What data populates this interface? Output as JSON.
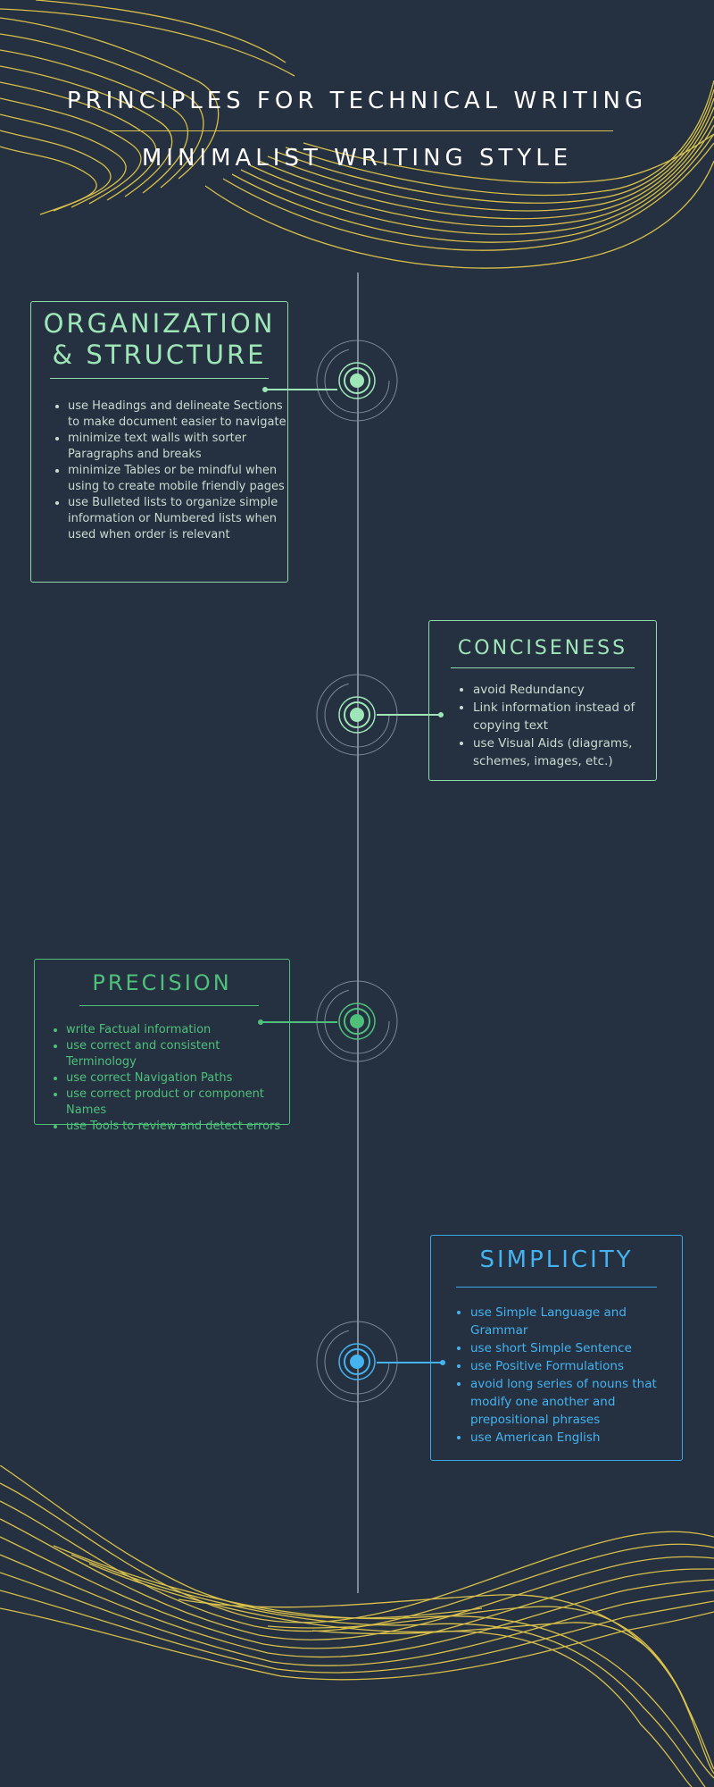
{
  "header": {
    "title": "PRINCIPLES FOR TECHNICAL WRITING",
    "subtitle": "MINIMALIST WRITING STYLE"
  },
  "colors": {
    "background": "#253040",
    "accent_gold": "#d8c04a",
    "mint": "#9ee6b7",
    "green": "#4fc07a",
    "blue": "#45b3ef",
    "timeline": "#7d8899"
  },
  "sections": [
    {
      "title": "ORGANIZATION & STRUCTURE",
      "items": [
        "use Headings and delineate Sections to make document easier to navigate",
        "minimize text walls with sorter Paragraphs and breaks",
        "minimize Tables or be mindful when using to create mobile friendly pages",
        "use Bulleted lists to organize simple information or Numbered lists when used when order is relevant"
      ]
    },
    {
      "title": "CONCISENESS",
      "items": [
        "avoid Redundancy",
        "Link information instead of copying text",
        "use Visual Aids (diagrams, schemes, images, etc.)"
      ]
    },
    {
      "title": "PRECISION",
      "items": [
        "write Factual information",
        "use correct and consistent Terminology",
        "use correct Navigation Paths",
        "use correct product or component Names",
        "use Tools to review and detect errors"
      ]
    },
    {
      "title": "SIMPLICITY",
      "items": [
        "use Simple Language and Grammar",
        "use short Simple Sentence",
        "use Positive Formulations",
        "avoid long series of nouns that modify one another and prepositional phrases",
        "use American English"
      ]
    }
  ]
}
